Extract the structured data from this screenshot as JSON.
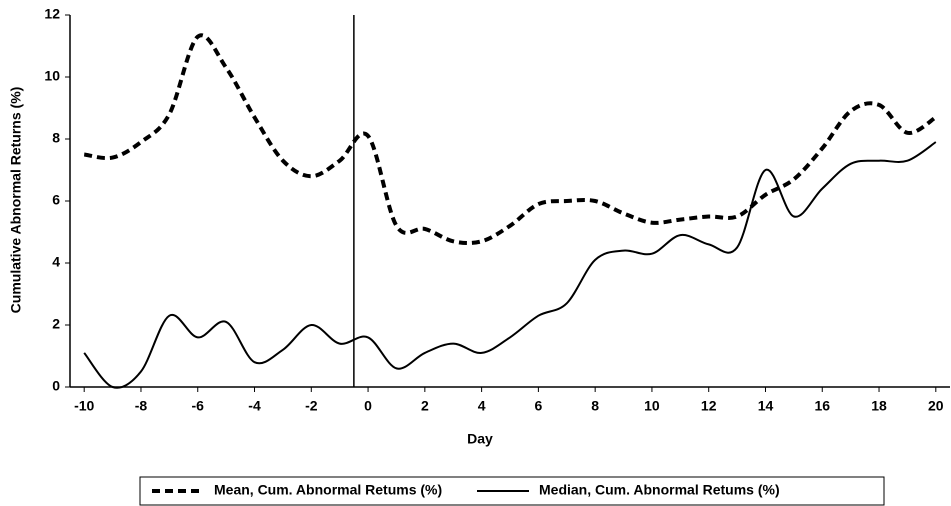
{
  "chart_data": {
    "type": "line",
    "xlabel": "Day",
    "ylabel": "Cumulative Abnormal Returns (%)",
    "x": [
      -10,
      -9,
      -8,
      -7,
      -6,
      -5,
      -4,
      -3,
      -2,
      -1,
      0,
      1,
      2,
      3,
      4,
      5,
      6,
      7,
      8,
      9,
      10,
      11,
      12,
      13,
      14,
      15,
      16,
      17,
      18,
      19,
      20
    ],
    "series": [
      {
        "name": "Mean, Cum. Abnormal Retums (%)",
        "color": "#000000",
        "dash": true,
        "values": [
          7.5,
          7.4,
          7.9,
          8.8,
          11.3,
          10.3,
          8.7,
          7.3,
          6.8,
          7.3,
          8.1,
          5.2,
          5.1,
          4.7,
          4.7,
          5.2,
          5.9,
          6.0,
          6.0,
          5.6,
          5.3,
          5.4,
          5.5,
          5.5,
          6.2,
          6.7,
          7.7,
          8.9,
          9.1,
          8.2,
          8.7
        ]
      },
      {
        "name": "Median, Cum. Abnormal Retums (%)",
        "color": "#000000",
        "dash": false,
        "values": [
          1.1,
          0.0,
          0.5,
          2.3,
          1.6,
          2.1,
          0.8,
          1.2,
          2.0,
          1.4,
          1.6,
          0.6,
          1.1,
          1.4,
          1.1,
          1.6,
          2.3,
          2.7,
          4.1,
          4.4,
          4.3,
          4.9,
          4.6,
          4.5,
          7.0,
          5.5,
          6.4,
          7.2,
          7.3,
          7.3,
          7.9
        ]
      }
    ],
    "xlim": [
      -10.5,
      20.5
    ],
    "xticks": [
      -10,
      -8,
      -6,
      -4,
      -2,
      0,
      2,
      4,
      6,
      8,
      10,
      12,
      14,
      16,
      18,
      20
    ],
    "ylim": [
      0,
      12
    ],
    "yticks": [
      0,
      2,
      4,
      6,
      8,
      10,
      12
    ],
    "reference_line_x": -0.5,
    "legend": "bottom"
  }
}
